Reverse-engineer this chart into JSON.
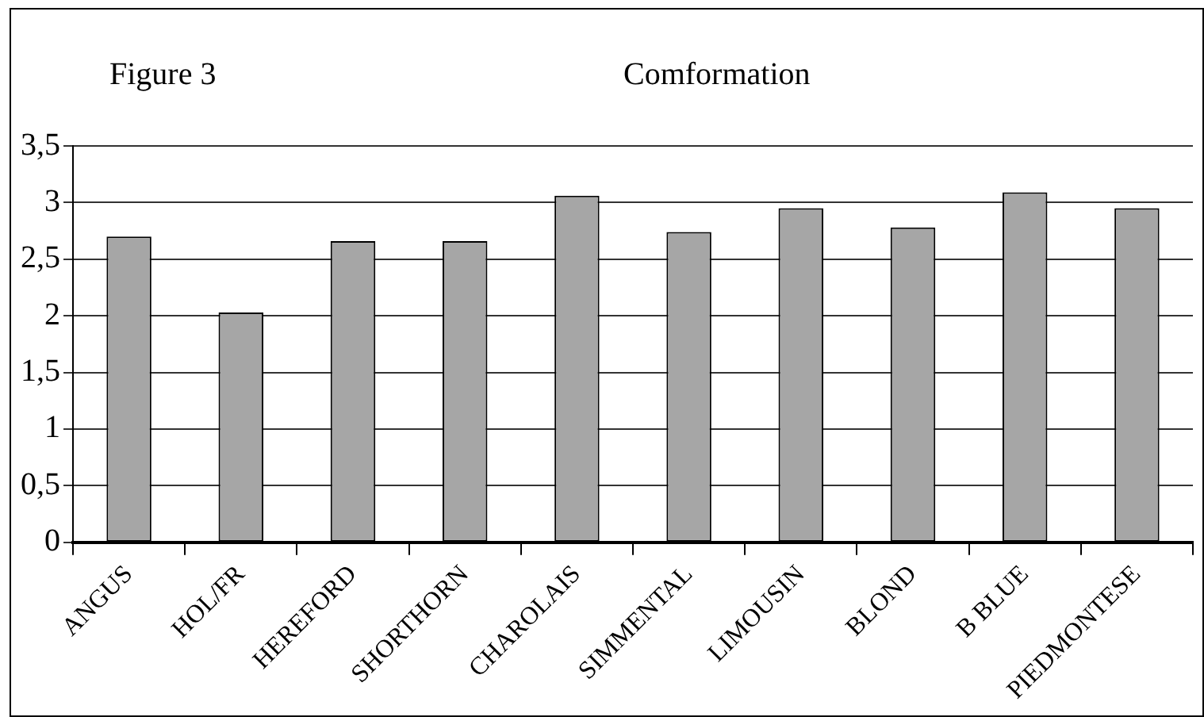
{
  "chart_data": {
    "type": "bar",
    "title": "Comformation",
    "annotations": [
      "Figure 3"
    ],
    "categories": [
      "ANGUS",
      "HOL/FR",
      "HEREFORD",
      "SHORTHORN",
      "CHAROLAIS",
      "SIMMENTAL",
      "LIMOUSIN",
      "BLOND",
      "B BLUE",
      "PIEDMONTESE"
    ],
    "values": [
      2.7,
      2.03,
      2.66,
      2.66,
      3.06,
      2.74,
      2.95,
      2.78,
      3.09,
      2.95
    ],
    "color": "#a6a6a6",
    "ylim": [
      0,
      3.5
    ],
    "yticks": [
      {
        "value": 0,
        "label": "0"
      },
      {
        "value": 0.5,
        "label": "0,5"
      },
      {
        "value": 1,
        "label": "1"
      },
      {
        "value": 1.5,
        "label": "1,5"
      },
      {
        "value": 2,
        "label": "2"
      },
      {
        "value": 2.5,
        "label": "2,5"
      },
      {
        "value": 3,
        "label": "3"
      },
      {
        "value": 3.5,
        "label": "3,5"
      }
    ],
    "grid": "y",
    "legend": false
  }
}
